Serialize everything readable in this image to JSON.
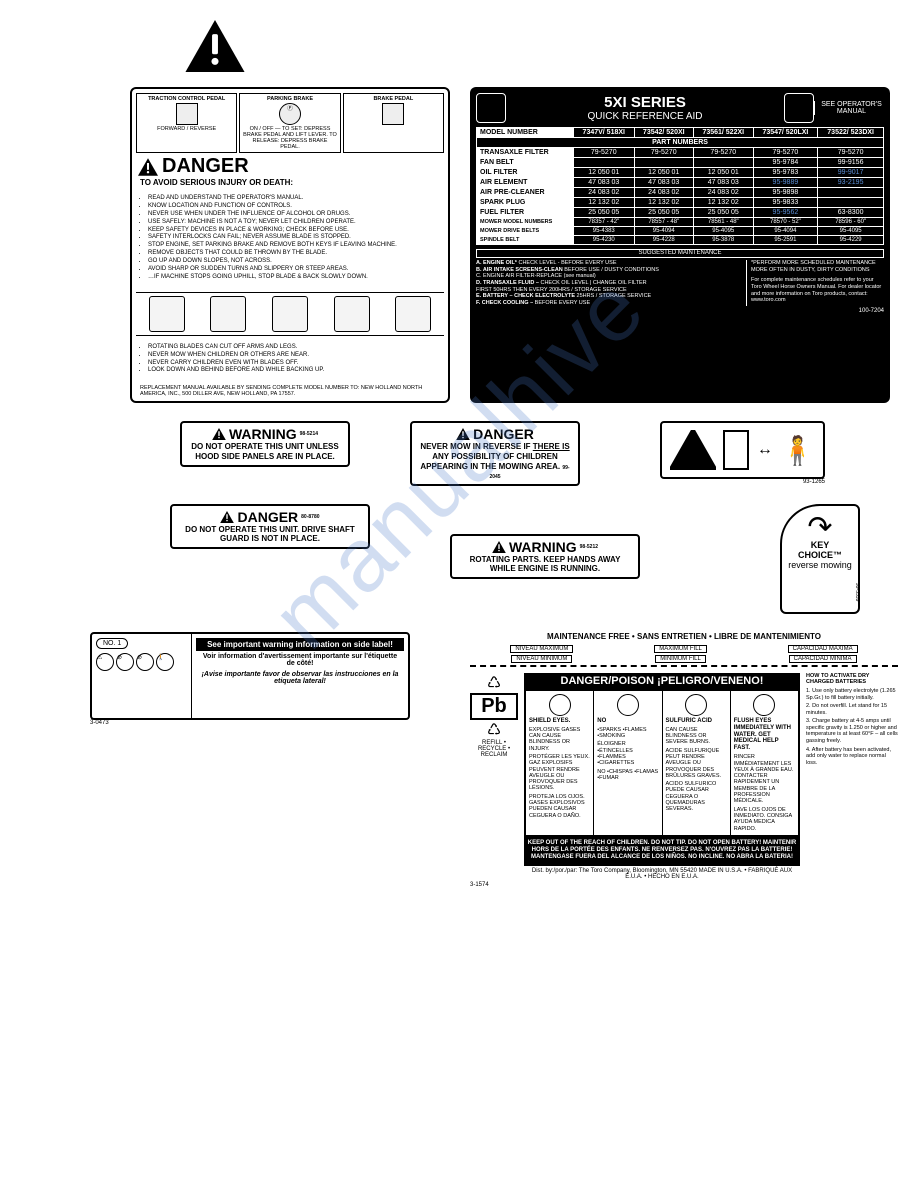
{
  "watermark": "manualhive",
  "danger_main": {
    "top": [
      {
        "title": "TRACTION CONTROL PEDAL",
        "sub": "FORWARD / REVERSE"
      },
      {
        "title": "PARKING BRAKE",
        "sub": "ON / OFF — TO SET: DEPRESS BRAKE PEDAL AND LIFT LEVER. TO RELEASE: DEPRESS BRAKE PEDAL."
      },
      {
        "title": "BRAKE PEDAL",
        "sub": ""
      }
    ],
    "title": "DANGER",
    "subtitle": "TO AVOID SERIOUS INJURY OR DEATH:",
    "bullets1": [
      "READ AND UNDERSTAND THE OPERATOR'S MANUAL.",
      "KNOW LOCATION AND FUNCTION OF CONTROLS.",
      "NEVER USE WHEN UNDER THE INFLUENCE OF ALCOHOL OR DRUGS.",
      "USE SAFELY: MACHINE IS NOT A TOY; NEVER LET CHILDREN OPERATE.",
      "KEEP SAFETY DEVICES IN PLACE & WORKING; CHECK BEFORE USE.",
      "SAFETY INTERLOCKS CAN FAIL; NEVER ASSUME BLADE IS STOPPED.",
      "STOP ENGINE, SET PARKING BRAKE AND REMOVE BOTH KEYS IF LEAVING MACHINE.",
      "REMOVE OBJECTS THAT COULD BE THROWN BY THE BLADE.",
      "GO UP AND DOWN SLOPES, NOT ACROSS.",
      "AVOID SHARP OR SUDDEN TURNS AND SLIPPERY OR STEEP AREAS.",
      "…IF MACHINE STOPS GOING UPHILL, STOP BLADE & BACK SLOWLY DOWN."
    ],
    "bullets2": [
      "ROTATING BLADES CAN CUT OFF ARMS AND LEGS.",
      "NEVER MOW WHEN CHILDREN OR OTHERS ARE NEAR.",
      "NEVER CARRY CHILDREN EVEN WITH BLADES OFF.",
      "LOOK DOWN AND BEHIND BEFORE AND WHILE BACKING UP."
    ],
    "footer": "REPLACEMENT MANUAL AVAILABLE BY SENDING COMPLETE MODEL NUMBER TO: NEW HOLLAND NORTH AMERICA, INC., 500 DILLER AVE, NEW HOLLAND, PA 17557."
  },
  "quickref": {
    "title1": "5XI SERIES",
    "title2": "QUICK REFERENCE AID",
    "see": "SEE OPERATOR'S MANUAL",
    "model_hdr": "MODEL NUMBER",
    "models": [
      "7347V/ 518XI",
      "73542/ 520XI",
      "73561/ 522XI",
      "73547/ 520LXI",
      "73522/ 523DXI"
    ],
    "part_hdr": "PART NUMBERS",
    "rows": [
      {
        "name": "TRANSAXLE FILTER",
        "cells": [
          "79-5270",
          "79-5270",
          "79-5270",
          "79-5270",
          "79-5270"
        ]
      },
      {
        "name": "FAN BELT",
        "cells": [
          "",
          "",
          "",
          "95-9784",
          "99-9156"
        ]
      },
      {
        "name": "OIL FILTER",
        "cells": [
          "12 050 01",
          "12 050 01",
          "12 050 01",
          "95-9783",
          "99-9017"
        ],
        "hi": [
          4
        ]
      },
      {
        "name": "AIR ELEMENT",
        "cells": [
          "47 083 03",
          "47 083 03",
          "47 083 03",
          "95-9889",
          "93-2195"
        ],
        "hi": [
          3,
          4
        ]
      },
      {
        "name": "AIR PRE-CLEANER",
        "cells": [
          "24 083 02",
          "24 083 02",
          "24 083 02",
          "95-9898",
          ""
        ]
      },
      {
        "name": "SPARK PLUG",
        "cells": [
          "12 132 02",
          "12 132 02",
          "12 132 02",
          "95-9833",
          ""
        ]
      },
      {
        "name": "FUEL FILTER",
        "cells": [
          "25 050 05",
          "25 050 05",
          "25 050 05",
          "95-9562",
          "63-8300"
        ],
        "hi": [
          3
        ]
      }
    ],
    "rows2": [
      {
        "name": "MOWER MODEL NUMBERS",
        "cells": [
          "78357 - 42\"",
          "78557 - 48\"",
          "78561 - 48\"",
          "78570 - 52\"",
          "78596 - 60\""
        ]
      },
      {
        "name": "MOWER DRIVE BELTS",
        "cells": [
          "95-4383",
          "95-4094",
          "95-4095",
          "95-4094",
          "95-4095"
        ]
      },
      {
        "name": "SPINDLE BELT",
        "cells": [
          "95-4230",
          "95-4228",
          "95-3878",
          "95-2591",
          "95-4229"
        ]
      }
    ],
    "maint_title": "SUGGESTED MAINTENANCE",
    "maint": [
      {
        "k": "A. ENGINE OIL*",
        "v": "CHECK LEVEL - BEFORE EVERY USE"
      },
      {
        "k": "B. AIR INTAKE SCREENS-CLEAN",
        "v": "BEFORE USE / DUSTY CONDITIONS"
      },
      {
        "k": "",
        "v": "C. ENGINE AIR FILTER-REPLACE  (see manual)"
      },
      {
        "k": "D. TRANSAXLE FLUID –",
        "v": "CHECK OIL LEVEL  |  CHANGE OIL FILTER"
      },
      {
        "k": "",
        "v": "FIRST 50HRS THEN EVERY 200HRS / STORAGE SERVICE"
      },
      {
        "k": "E. BATTERY – CHECK ELECTROLYTE",
        "v": "25HRS / STORAGE SERVICE"
      },
      {
        "k": "F. CHECK COOLING –",
        "v": "BEFORE EVERY USE"
      }
    ],
    "note": "*PERFORM MORE SCHEDULED MAINTENANCE MORE OFTEN IN DUSTY, DIRTY CONDITIONS",
    "dealer": "For complete maintenance schedules refer to your Toro Wheel Horse Owners Manual. For dealer locator and more information on Toro products, contact: www.toro.com",
    "part": "100-7204"
  },
  "warn_hood": {
    "hdr": "WARNING",
    "body": "DO NOT OPERATE THIS UNIT UNLESS HOOD SIDE PANELS ARE IN PLACE.",
    "part": "98-5214"
  },
  "danger_reverse": {
    "hdr": "DANGER",
    "body1": "NEVER MOW IN REVERSE IF",
    "body2": "THERE IS",
    "body3": "ANY POSSIBILITY OF CHILDREN APPEARING IN THE MOWING AREA.",
    "part": "99-2045"
  },
  "danger_shaft": {
    "hdr": "DANGER",
    "body": "DO NOT OPERATE THIS UNIT. DRIVE SHAFT GUARD IS NOT IN PLACE.",
    "part": "80-8780"
  },
  "warn_rotating": {
    "hdr": "WARNING",
    "body": "ROTATING PARTS. KEEP HANDS AWAY WHILE ENGINE IS RUNNING.",
    "part": "98-5212"
  },
  "keychoice": {
    "t1": "KEY",
    "t2": "CHOICE™",
    "t3": "reverse mowing",
    "part": "99-5339"
  },
  "slope_part": "93-1265",
  "side_warn": {
    "no": "NO.  1",
    "r1": "See important warning information on side label!",
    "r2": "Voir information d'avertissement importante sur l'étiquette de côté!",
    "r3": "¡Avise importante favor de observar las instrucciones en la etiqueta lateral!",
    "part": "3-0473"
  },
  "battery": {
    "top": "MAINTENANCE FREE • SANS ENTRETIEN • LIBRE DE MANTENIMIENTO",
    "levels_top": [
      "NIVEAU MAXIMUM",
      "MAXIMUM FILL",
      "CAPACIDAD MAXIMA"
    ],
    "levels_bot": [
      "NIVEAU MINIMUM",
      "MINIMUM FILL",
      "CAPACIDAD MINIMA"
    ],
    "strip": "DANGER/POISON  ¡PELIGRO/VENENO!",
    "cols": [
      {
        "title": "SHIELD EYES.",
        "lines": [
          "EXPLOSIVE GASES CAN CAUSE BLINDNESS OR INJURY.",
          "PROTÉGER LES YEUX. GAZ EXPLOSIFS PEUVENT RENDRE AVEUGLE OU PROVOQUER DES LÉSIONS.",
          "PROTEJA LOS OJOS. GASES EXPLOSIVOS PUEDEN CAUSAR CEGUERA O DAÑO."
        ]
      },
      {
        "title": "NO",
        "lines": [
          "•SPARKS •FLAMES •SMOKING",
          "ÉLOIGNER •ÉTINCELLES •FLAMMES •CIGARETTES",
          "NO •CHISPAS •FLAMAS •FUMAR"
        ]
      },
      {
        "title": "SULFURIC ACID",
        "lines": [
          "CAN CAUSE BLINDNESS OR SEVERE BURNS.",
          "ACIDE SULFURIQUE PEUT RENDRE AVEUGLE OU PROVOQUER DES BRÛLURES GRAVES.",
          "ACIDO SULFURICO PUEDE CAUSAR CEGUERA O QUEMADURAS SEVERAS."
        ]
      },
      {
        "title": "FLUSH EYES IMMEDIATELY WITH WATER. GET MEDICAL HELP FAST.",
        "lines": [
          "RINCER IMMÉDIATEMENT LES YEUX À GRANDE EAU. CONTACTER RAPIDEMENT UN MEMBRE DE LA PROFESSION MÉDICALE.",
          "LAVE LOS OJOS DE INMEDIATO. CONSIGA AYUDA MEDICA RAPIDO."
        ]
      }
    ],
    "side_title": "HOW TO ACTIVATE DRY CHARGED BATTERIES",
    "side": [
      "1. Use only battery electrolyte (1.265 Sp.Gr.) to fill battery initially.",
      "2. Do not overfill. Let stand for 15 minutes.",
      "3. Charge battery at 4-5 amps until specific gravity is 1.250 or higher and temperature is at least 60°F – all cells gassing freely.",
      "4. After battery has been activated, add only water to replace normal loss."
    ],
    "pb": "Pb",
    "pb_sub": "REFILL • RECYCLE • RECLAIM",
    "keepout": "KEEP OUT OF THE REACH OF CHILDREN. DO NOT TIP. DO NOT OPEN BATTERY! MAINTENIR HORS DE LA PORTÉE DES ENFANTS. NE RENVERSEZ PAS. N'OUVREZ PAS LA BATTERIE!   MANTENGASE FUERA DEL ALCANCE DE LOS NIÑOS. NO INCLINE. NO ABRA LA BATERIA!",
    "dist": "Dist. by:/por./par: The Toro Company, Bloomington, MN 55420    MADE IN U.S.A. • FABRIQUÉ AUX É.U.A. • HECHO EN E.U.A.",
    "part": "3-1574"
  }
}
